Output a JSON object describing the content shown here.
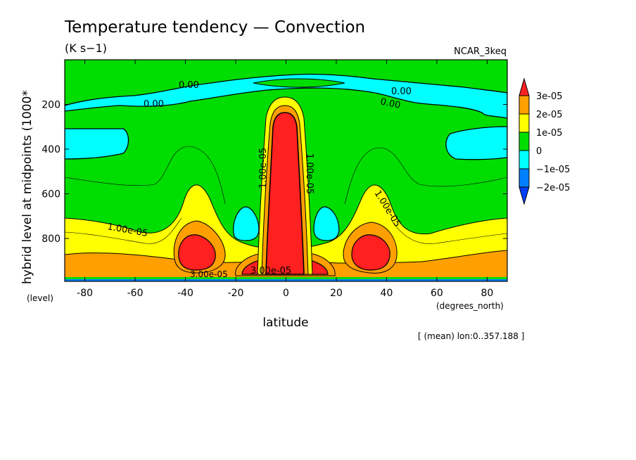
{
  "chart_data": {
    "type": "heatmap",
    "title": "Temperature tendency — Convection",
    "units": "(K s−1)",
    "model": "NCAR_3keq",
    "xlabel": "latitude",
    "x_units": "(degrees_north)",
    "ylabel": "hybrid level at midpoints (1000*",
    "y_units": "(level)",
    "averaging_note": "[ (mean) lon:0..357.188 ]",
    "xlim": [
      -88,
      88
    ],
    "ylim": [
      992,
      0
    ],
    "x_ticks": [
      -80,
      -60,
      -40,
      -20,
      0,
      20,
      40,
      60,
      80
    ],
    "y_ticks": [
      200,
      400,
      600,
      800
    ],
    "colorbar": {
      "levels": [
        "3e-05",
        "2e-05",
        "1e-05",
        "0",
        "−1e-05",
        "−2e-05"
      ],
      "colors": [
        "#ff2020",
        "#ff9f00",
        "#ffff00",
        "#00dd00",
        "#00ffff",
        "#0080ff",
        "#0040ff"
      ]
    },
    "contour_labels": [
      "0.00",
      "0.00",
      "0.00",
      "0.00",
      "1.00e-05",
      "1.00e-05",
      "1.00e-05",
      "1.00e-05",
      "3.00e-05",
      "3.00e-05"
    ]
  }
}
